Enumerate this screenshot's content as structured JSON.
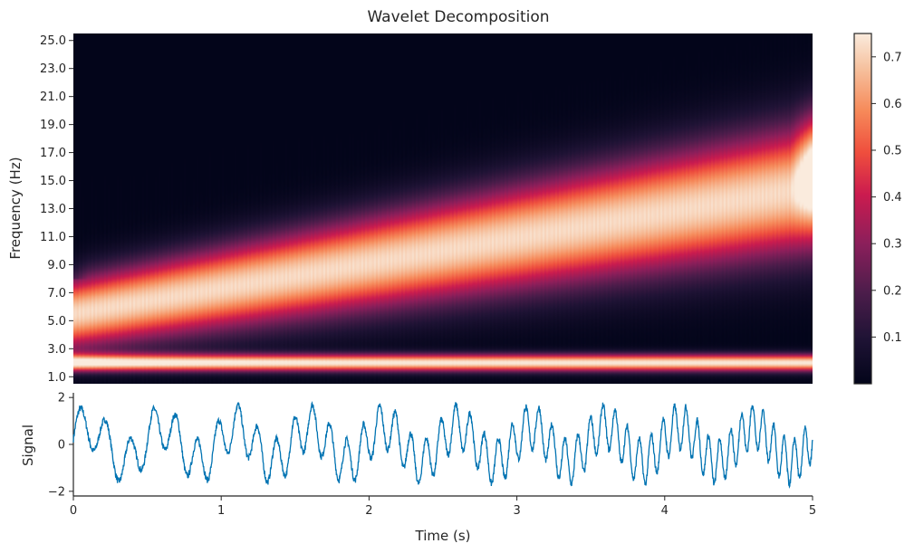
{
  "chart_data": [
    {
      "type": "heatmap",
      "title": "Wavelet Decomposition",
      "xlabel": "",
      "ylabel": "Frequency (Hz)",
      "xlim": [
        0,
        5
      ],
      "ylim": [
        0.5,
        25.5
      ],
      "ytick_labels": [
        "1.0",
        "3.0",
        "5.0",
        "7.0",
        "9.0",
        "11.0",
        "13.0",
        "15.0",
        "17.0",
        "19.0",
        "21.0",
        "23.0",
        "25.0"
      ],
      "ytick_values": [
        1,
        3,
        5,
        7,
        9,
        11,
        13,
        15,
        17,
        19,
        21,
        23,
        25
      ],
      "colorbar": {
        "range": [
          0.0,
          0.75
        ],
        "tick_labels": [
          "0.1",
          "0.2",
          "0.3",
          "0.4",
          "0.5",
          "0.6",
          "0.7"
        ],
        "tick_values": [
          0.1,
          0.2,
          0.3,
          0.4,
          0.5,
          0.6,
          0.7
        ],
        "colormap": "rocket"
      },
      "bands": [
        {
          "name": "",
          "frequency_start_hz": 5.5,
          "frequency_end_hz": 14.5,
          "peak_power": 0.72
        },
        {
          "name": "",
          "frequency_start_hz": 2.0,
          "frequency_end_hz": 2.0,
          "peak_power": 0.75
        }
      ]
    },
    {
      "type": "line",
      "xlabel": "Time (s)",
      "ylabel": "Signal",
      "xlim": [
        0,
        5
      ],
      "ylim": [
        -2.2,
        2.2
      ],
      "xtick_labels": [
        "0",
        "1",
        "2",
        "3",
        "4",
        "5"
      ],
      "xtick_values": [
        0,
        1,
        2,
        3,
        4,
        5
      ],
      "ytick_labels": [
        "2",
        "0",
        "−2"
      ],
      "ytick_values": [
        2,
        0,
        -2
      ],
      "series_color": "#0173b2"
    }
  ]
}
